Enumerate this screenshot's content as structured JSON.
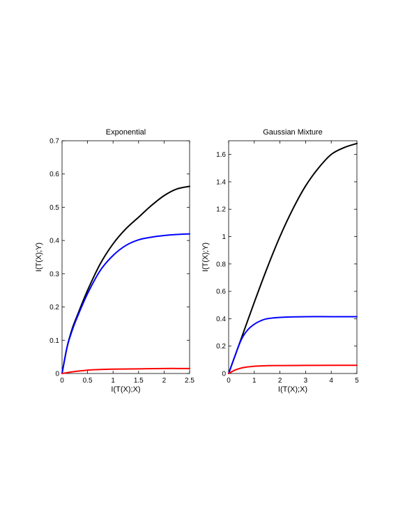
{
  "chart_data": [
    {
      "type": "line",
      "title": "Exponential",
      "xlabel": "I(T(X);X)",
      "ylabel": "I(T(X);Y)",
      "xlim": [
        0,
        2.5
      ],
      "ylim": [
        0,
        0.7
      ],
      "xticks": [
        0,
        0.5,
        1,
        1.5,
        2,
        2.5
      ],
      "yticks": [
        0,
        0.1,
        0.2,
        0.3,
        0.4,
        0.5,
        0.6,
        0.7
      ],
      "xtick_labels": [
        "0",
        "0.5",
        "1",
        "1.5",
        "2",
        "2.5"
      ],
      "ytick_labels": [
        "0",
        "0.1",
        "0.2",
        "0.3",
        "0.4",
        "0.5",
        "0.6",
        "0.7"
      ],
      "grid": false,
      "series": [
        {
          "color": "#000000",
          "x": [
            0,
            0.1,
            0.2,
            0.3,
            0.5,
            0.75,
            1.0,
            1.25,
            1.5,
            1.75,
            2.0,
            2.25,
            2.5
          ],
          "y": [
            0,
            0.08,
            0.135,
            0.175,
            0.25,
            0.33,
            0.39,
            0.435,
            0.47,
            0.505,
            0.535,
            0.555,
            0.563
          ]
        },
        {
          "color": "#0000ff",
          "x": [
            0,
            0.1,
            0.2,
            0.3,
            0.5,
            0.75,
            1.0,
            1.25,
            1.5,
            1.75,
            2.0,
            2.25,
            2.5
          ],
          "y": [
            0,
            0.08,
            0.13,
            0.17,
            0.24,
            0.31,
            0.355,
            0.385,
            0.402,
            0.41,
            0.415,
            0.418,
            0.42
          ]
        },
        {
          "color": "#ff0000",
          "x": [
            0,
            0.25,
            0.5,
            0.75,
            1.0,
            1.5,
            2.0,
            2.5
          ],
          "y": [
            0,
            0.006,
            0.01,
            0.012,
            0.013,
            0.014,
            0.015,
            0.015
          ]
        }
      ]
    },
    {
      "type": "line",
      "title": "Gaussian Mixture",
      "xlabel": "I(T(X);X)",
      "ylabel": "I(T(X);Y)",
      "xlim": [
        0,
        5
      ],
      "ylim": [
        0,
        1.7
      ],
      "xticks": [
        0,
        1,
        2,
        3,
        4,
        5
      ],
      "yticks": [
        0,
        0.2,
        0.4,
        0.6,
        0.8,
        1.0,
        1.2,
        1.4,
        1.6
      ],
      "xtick_labels": [
        "0",
        "1",
        "2",
        "3",
        "4",
        "5"
      ],
      "ytick_labels": [
        "0",
        "0.2",
        "0.4",
        "0.6",
        "0.8",
        "1",
        "1.2",
        "1.4",
        "1.6"
      ],
      "grid": false,
      "series": [
        {
          "color": "#000000",
          "x": [
            0,
            0.5,
            1.0,
            1.5,
            2.0,
            2.5,
            3.0,
            3.5,
            4.0,
            4.5,
            5.0
          ],
          "y": [
            0,
            0.26,
            0.52,
            0.77,
            1.0,
            1.2,
            1.37,
            1.5,
            1.6,
            1.65,
            1.68
          ]
        },
        {
          "color": "#0000ff",
          "x": [
            0,
            0.25,
            0.5,
            0.75,
            1.0,
            1.25,
            1.5,
            2.0,
            3.0,
            4.0,
            5.0
          ],
          "y": [
            0,
            0.13,
            0.25,
            0.32,
            0.36,
            0.385,
            0.4,
            0.41,
            0.415,
            0.415,
            0.415
          ]
        },
        {
          "color": "#ff0000",
          "x": [
            0,
            0.25,
            0.5,
            0.75,
            1.0,
            1.5,
            2.0,
            3.0,
            4.0,
            5.0
          ],
          "y": [
            0,
            0.025,
            0.04,
            0.048,
            0.053,
            0.057,
            0.058,
            0.059,
            0.06,
            0.06
          ]
        }
      ]
    }
  ]
}
